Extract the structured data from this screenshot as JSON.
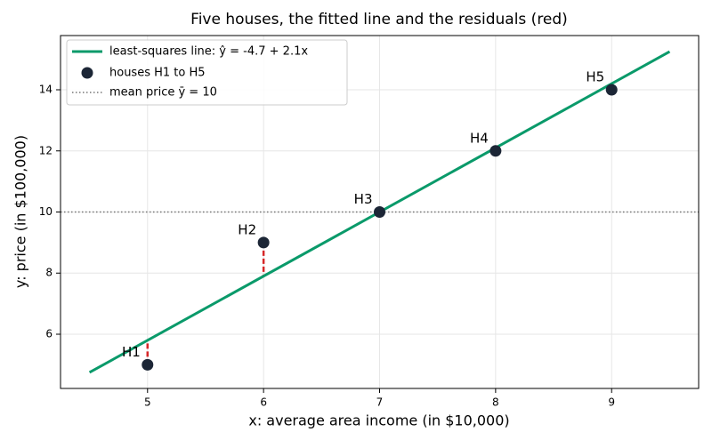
{
  "chart_data": {
    "type": "scatter",
    "title": "Five houses, the fitted line and the residuals (red)",
    "xlabel": "x: average area income (in $10,000)",
    "ylabel": "y: price (in $100,000)",
    "xlim": [
      4.25,
      9.75
    ],
    "ylim": [
      4.225,
      15.775
    ],
    "xticks": [
      5,
      6,
      7,
      8,
      9
    ],
    "yticks": [
      6,
      8,
      10,
      12,
      14
    ],
    "grid": true,
    "legend": "upper left",
    "line": {
      "name": "least-squares line: ŷ = -4.7 + 2.1x",
      "color": "#0a9a6a",
      "x": [
        4.5,
        9.5
      ],
      "values": [
        4.75,
        15.25
      ]
    },
    "points": {
      "name": "houses H1 to H5",
      "color": "#1c2636",
      "labels": [
        "H1",
        "H2",
        "H3",
        "H4",
        "H5"
      ],
      "x": [
        5,
        6,
        7,
        8,
        9
      ],
      "values": [
        5,
        9,
        10,
        12,
        14
      ]
    },
    "mean": {
      "name": "mean price ȳ = 10",
      "color": "#777777",
      "value": 10
    },
    "residuals": {
      "color": "#d62728",
      "fitted": [
        5.8,
        7.9,
        10,
        12.1,
        14.2
      ]
    }
  }
}
